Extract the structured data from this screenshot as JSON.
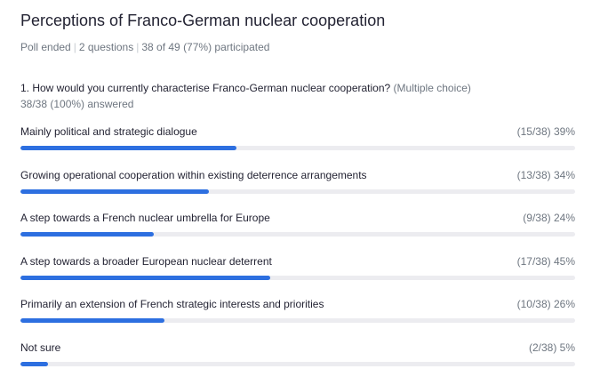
{
  "poll": {
    "title": "Perceptions of Franco-German nuclear cooperation",
    "status": "Poll ended",
    "question_count": "2 questions",
    "participation": "38 of 49 (77%) participated",
    "question": {
      "text": "1. How would you currently characterise Franco-German nuclear cooperation?",
      "type": "(Multiple choice)",
      "answered": "38/38 (100%) answered",
      "options": [
        {
          "label": "Mainly political and strategic dialogue",
          "stat": "(15/38) 39%",
          "fraction": 0.39
        },
        {
          "label": "Growing operational cooperation within existing deterrence arrangements",
          "stat": "(13/38) 34%",
          "fraction": 0.34
        },
        {
          "label": "A step towards a French nuclear umbrella for Europe",
          "stat": "(9/38) 24%",
          "fraction": 0.24
        },
        {
          "label": "A step towards a broader European nuclear deterrent",
          "stat": "(17/38) 45%",
          "fraction": 0.45
        },
        {
          "label": "Primarily an extension of French strategic interests and priorities",
          "stat": "(10/38) 26%",
          "fraction": 0.26
        },
        {
          "label": "Not sure",
          "stat": "(2/38) 5%",
          "fraction": 0.05
        }
      ]
    }
  },
  "colors": {
    "bar_fill": "#2d6fe0",
    "bar_track": "#ececf0",
    "primary_text": "#232333",
    "secondary_text": "#6e7680"
  }
}
